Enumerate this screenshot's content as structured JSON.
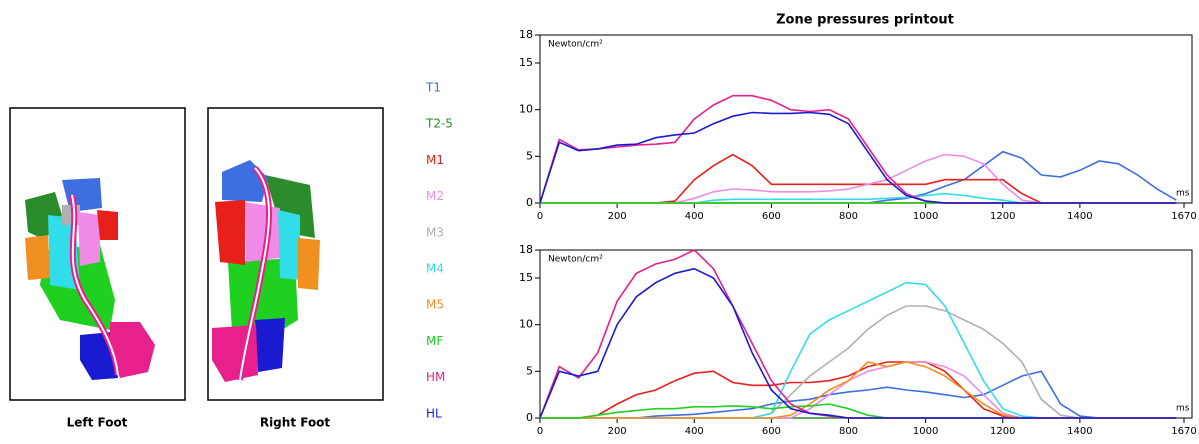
{
  "feet": {
    "left": "Left Foot",
    "right": "Right Foot"
  },
  "chart_data": [
    {
      "type": "line",
      "title": "Zone pressures printout",
      "ylabel": "Newton/cm²",
      "xlabel": "ms",
      "x": [
        0,
        50,
        100,
        150,
        200,
        250,
        300,
        350,
        400,
        450,
        500,
        550,
        600,
        650,
        700,
        750,
        800,
        850,
        900,
        950,
        1000,
        1050,
        1100,
        1150,
        1200,
        1250,
        1300,
        1350,
        1400,
        1450,
        1500,
        1550,
        1600,
        1650
      ],
      "xlim": [
        0,
        1670
      ],
      "xticks": [
        0,
        200,
        400,
        600,
        800,
        1000,
        1200,
        1400,
        1670
      ],
      "ylim": [
        0,
        18
      ],
      "yticks": [
        0,
        5,
        10,
        15,
        18
      ],
      "series": [
        {
          "name": "T1",
          "color": "#3d6fe0",
          "values": [
            0,
            0,
            0,
            0,
            0,
            0,
            0,
            0,
            0,
            0,
            0,
            0,
            0,
            0,
            0,
            0,
            0,
            0,
            0.3,
            0.5,
            1,
            1.8,
            2.5,
            4,
            5.5,
            4.8,
            3,
            2.8,
            3.5,
            4.5,
            4.2,
            3,
            1.5,
            0.3
          ]
        },
        {
          "name": "T2-5",
          "color": "#2a8c2a",
          "values": [
            0,
            0,
            0,
            0,
            0,
            0,
            0,
            0,
            0,
            0,
            0,
            0,
            0,
            0,
            0,
            0,
            0,
            0,
            0,
            0,
            0,
            0,
            0,
            0,
            0,
            0,
            0,
            0,
            0,
            0,
            0,
            0,
            0,
            0
          ]
        },
        {
          "name": "M1",
          "color": "#e8201a",
          "values": [
            0,
            0,
            0,
            0,
            0,
            0,
            0,
            0.2,
            2.5,
            4,
            5.2,
            4,
            2,
            2,
            2,
            2,
            2,
            2,
            2,
            2,
            2,
            2.5,
            2.5,
            2.5,
            2.5,
            1,
            0,
            0,
            0,
            0,
            0,
            0,
            0,
            0
          ]
        },
        {
          "name": "M2",
          "color": "#f08ce8",
          "values": [
            0,
            0,
            0,
            0,
            0,
            0,
            0,
            0,
            0.5,
            1.2,
            1.5,
            1.4,
            1.2,
            1.2,
            1.2,
            1.3,
            1.5,
            2,
            2.5,
            3.5,
            4.5,
            5.2,
            5,
            4.2,
            2,
            0.3,
            0,
            0,
            0,
            0,
            0,
            0,
            0,
            0
          ]
        },
        {
          "name": "M3",
          "color": "#b0b0b0",
          "values": [
            0,
            0,
            0,
            0,
            0,
            0,
            0,
            0,
            0,
            0,
            0,
            0,
            0,
            0,
            0,
            0,
            0,
            0,
            0,
            0,
            0,
            0,
            0,
            0,
            0,
            0,
            0,
            0,
            0,
            0,
            0,
            0,
            0,
            0
          ]
        },
        {
          "name": "M4",
          "color": "#30dde8",
          "values": [
            0,
            0,
            0,
            0,
            0,
            0,
            0,
            0,
            0,
            0.3,
            0.4,
            0.4,
            0.4,
            0.4,
            0.4,
            0.4,
            0.4,
            0.4,
            0.5,
            0.6,
            0.8,
            1,
            0.8,
            0.5,
            0.3,
            0,
            0,
            0,
            0,
            0,
            0,
            0,
            0,
            0
          ]
        },
        {
          "name": "M5",
          "color": "#f09020",
          "values": [
            0,
            0,
            0,
            0,
            0,
            0,
            0,
            0,
            0,
            0,
            0,
            0,
            0,
            0,
            0,
            0,
            0,
            0,
            0,
            0,
            0,
            0,
            0,
            0,
            0,
            0,
            0,
            0,
            0,
            0,
            0,
            0,
            0,
            0
          ]
        },
        {
          "name": "MF",
          "color": "#20d020",
          "values": [
            0,
            0,
            0,
            0,
            0,
            0,
            0,
            0,
            0,
            0,
            0,
            0,
            0,
            0,
            0,
            0,
            0,
            0,
            0,
            0,
            0,
            0,
            0,
            0,
            0,
            0,
            0,
            0,
            0,
            0,
            0,
            0,
            0,
            0
          ]
        },
        {
          "name": "HM",
          "color": "#e8208c",
          "values": [
            0,
            6.8,
            5.7,
            5.8,
            6,
            6.2,
            6.3,
            6.5,
            9,
            10.5,
            11.5,
            11.5,
            11,
            10,
            9.8,
            10,
            9,
            6,
            3,
            1,
            0.2,
            0,
            0,
            0,
            0,
            0,
            0,
            0,
            0,
            0,
            0,
            0,
            0,
            0
          ]
        },
        {
          "name": "HL",
          "color": "#1a1ad0",
          "values": [
            0,
            6.5,
            5.6,
            5.8,
            6.2,
            6.3,
            7,
            7.3,
            7.5,
            8.5,
            9.3,
            9.7,
            9.6,
            9.6,
            9.7,
            9.5,
            8.5,
            5.5,
            2.5,
            0.8,
            0.2,
            0,
            0,
            0,
            0,
            0,
            0,
            0,
            0,
            0,
            0,
            0,
            0,
            0
          ]
        }
      ]
    },
    {
      "type": "line",
      "ylabel": "Newton/cm²",
      "xlabel": "ms",
      "x": [
        0,
        50,
        100,
        150,
        200,
        250,
        300,
        350,
        400,
        450,
        500,
        550,
        600,
        650,
        700,
        750,
        800,
        850,
        900,
        950,
        1000,
        1050,
        1100,
        1150,
        1200,
        1250,
        1300,
        1350,
        1400,
        1450,
        1500,
        1550,
        1600,
        1650
      ],
      "xlim": [
        0,
        1670
      ],
      "xticks": [
        0,
        200,
        400,
        600,
        800,
        1000,
        1200,
        1400,
        1670
      ],
      "ylim": [
        0,
        18
      ],
      "yticks": [
        0,
        5,
        10,
        15,
        18
      ],
      "series": [
        {
          "name": "T1",
          "color": "#3d6fe0",
          "values": [
            0,
            0,
            0,
            0,
            0,
            0,
            0.2,
            0.3,
            0.4,
            0.6,
            0.8,
            1,
            1.5,
            1.8,
            2,
            2.5,
            2.8,
            3,
            3.3,
            3,
            2.8,
            2.5,
            2.2,
            2.5,
            3.5,
            4.5,
            5,
            1.5,
            0.2,
            0,
            0,
            0,
            0,
            0
          ]
        },
        {
          "name": "T2-5",
          "color": "#2a8c2a",
          "values": [
            0,
            0,
            0,
            0,
            0,
            0,
            0,
            0,
            0,
            0,
            0,
            0,
            0,
            0,
            0,
            0,
            0,
            0,
            0,
            0,
            0,
            0,
            0,
            0,
            0,
            0,
            0,
            0,
            0,
            0,
            0,
            0,
            0,
            0
          ]
        },
        {
          "name": "M1",
          "color": "#e8201a",
          "values": [
            0,
            0,
            0,
            0.3,
            1.5,
            2.5,
            3,
            4,
            4.8,
            5,
            3.8,
            3.5,
            3.5,
            3.8,
            3.8,
            4,
            4.5,
            5.5,
            6,
            6,
            6,
            5,
            3,
            1,
            0.2,
            0,
            0,
            0,
            0,
            0,
            0,
            0,
            0,
            0
          ]
        },
        {
          "name": "M2",
          "color": "#f08ce8",
          "values": [
            0,
            0,
            0,
            0,
            0,
            0,
            0,
            0,
            0,
            0,
            0,
            0,
            0,
            0,
            1,
            2.5,
            4,
            5,
            5.5,
            6,
            6,
            5.5,
            4.5,
            2.5,
            0.5,
            0,
            0,
            0,
            0,
            0,
            0,
            0,
            0,
            0
          ]
        },
        {
          "name": "M3",
          "color": "#b0b0b0",
          "values": [
            0,
            0,
            0,
            0,
            0,
            0,
            0,
            0,
            0,
            0,
            0,
            0,
            0.5,
            2.5,
            4.5,
            6,
            7.5,
            9.5,
            11,
            12,
            12,
            11.5,
            10.5,
            9.5,
            8,
            6,
            2,
            0.3,
            0,
            0,
            0,
            0,
            0,
            0
          ]
        },
        {
          "name": "M4",
          "color": "#30dde8",
          "values": [
            0,
            0,
            0,
            0,
            0,
            0,
            0,
            0,
            0,
            0,
            0,
            0,
            0.5,
            5,
            9,
            10.5,
            11.5,
            12.5,
            13.5,
            14.5,
            14.3,
            12,
            8,
            4,
            1,
            0.2,
            0,
            0,
            0,
            0,
            0,
            0,
            0,
            0
          ]
        },
        {
          "name": "M5",
          "color": "#f09020",
          "values": [
            0,
            0,
            0,
            0,
            0,
            0,
            0,
            0,
            0,
            0,
            0,
            0,
            0,
            0.3,
            1.5,
            3,
            4,
            6,
            5.5,
            6,
            5.5,
            4.5,
            3,
            1.5,
            0.3,
            0,
            0,
            0,
            0,
            0,
            0,
            0,
            0,
            0
          ]
        },
        {
          "name": "MF",
          "color": "#20d020",
          "values": [
            0,
            0,
            0,
            0.3,
            0.6,
            0.8,
            1,
            1,
            1.2,
            1.2,
            1.3,
            1.2,
            1,
            1.2,
            1.3,
            1.5,
            1,
            0.3,
            0,
            0,
            0,
            0,
            0,
            0,
            0,
            0,
            0,
            0,
            0,
            0,
            0,
            0,
            0,
            0
          ]
        },
        {
          "name": "HM",
          "color": "#e8208c",
          "values": [
            0,
            5.5,
            4.3,
            7,
            12.5,
            15.5,
            16.5,
            17,
            18,
            16,
            12,
            8,
            4,
            1.5,
            0.5,
            0.2,
            0,
            0,
            0,
            0,
            0,
            0,
            0,
            0,
            0,
            0,
            0,
            0,
            0,
            0,
            0,
            0,
            0,
            0
          ]
        },
        {
          "name": "HL",
          "color": "#1a1ad0",
          "values": [
            0,
            5,
            4.5,
            5,
            10,
            13,
            14.5,
            15.5,
            16,
            15,
            12,
            7,
            3,
            1,
            0.5,
            0.3,
            0,
            0,
            0,
            0,
            0,
            0,
            0,
            0,
            0,
            0,
            0,
            0,
            0,
            0,
            0,
            0,
            0,
            0
          ]
        }
      ]
    }
  ]
}
